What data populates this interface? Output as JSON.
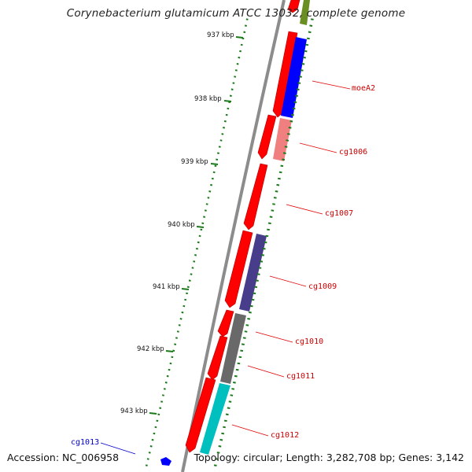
{
  "title": "Corynebacterium glutamicum ATCC 13032, complete genome",
  "footer": {
    "accession": "Accession: NC_006958",
    "summary": "Topology: circular; Length: 3,282,708 bp; Genes: 3,142"
  },
  "colors": {
    "backbone": "#8c8c8c",
    "cds": "#ff0000",
    "tick": "#1a7a1a",
    "label_line": "#e00000",
    "highlight_label": "#0000cc"
  },
  "scale_labels": [
    "937 kbp",
    "938 kbp",
    "939 kbp",
    "940 kbp",
    "941 kbp",
    "942 kbp",
    "943 kbp"
  ],
  "gene_labels": [
    {
      "name": "moeA2",
      "color": "#cc0000"
    },
    {
      "name": "cg1006",
      "color": "#cc0000"
    },
    {
      "name": "cg1007",
      "color": "#cc0000"
    },
    {
      "name": "cg1009",
      "color": "#cc0000"
    },
    {
      "name": "cg1010",
      "color": "#cc0000"
    },
    {
      "name": "cg1011",
      "color": "#cc0000"
    },
    {
      "name": "cg1012",
      "color": "#cc0000"
    },
    {
      "name": "cg1013",
      "color": "#0000cc"
    }
  ]
}
